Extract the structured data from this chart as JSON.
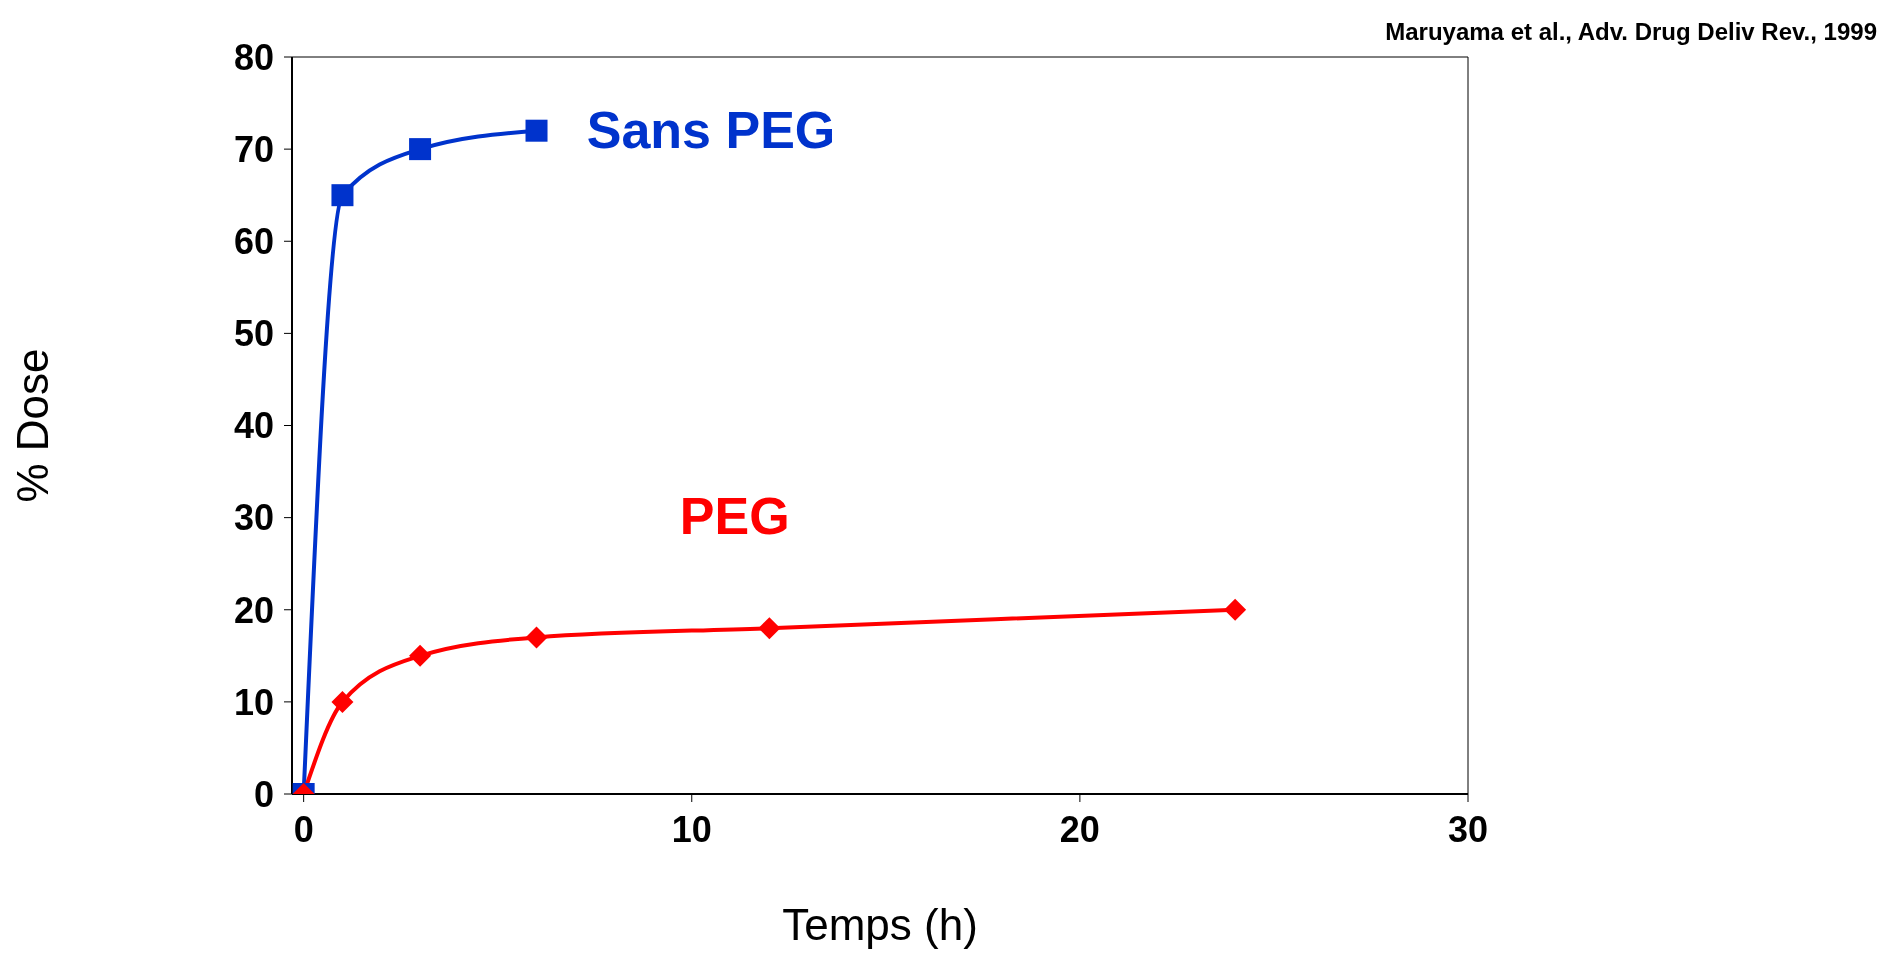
{
  "chart_data": {
    "type": "line",
    "xlabel": "Temps (h)",
    "ylabel": "% Dose",
    "annotations": [
      "Maruyama et al., Adv. Drug Deliv Rev., 1999"
    ],
    "xlim": [
      -0.3,
      30
    ],
    "xticks": [
      0,
      10,
      20,
      30
    ],
    "ylim": [
      0,
      80
    ],
    "yticks": [
      0,
      10,
      20,
      30,
      40,
      50,
      60,
      70,
      80
    ],
    "grid": false,
    "legend": false,
    "line_style": "solid",
    "series": [
      {
        "name": "Sans PEG",
        "color": "#0033cc",
        "marker": "square",
        "x": [
          0,
          1,
          3,
          6
        ],
        "values": [
          0,
          65,
          70,
          72
        ]
      },
      {
        "name": "PEG",
        "color": "#ff0000",
        "marker": "diamond",
        "x": [
          0,
          1,
          3,
          6,
          12,
          24
        ],
        "values": [
          0,
          10,
          15,
          17,
          18,
          20
        ]
      }
    ]
  }
}
